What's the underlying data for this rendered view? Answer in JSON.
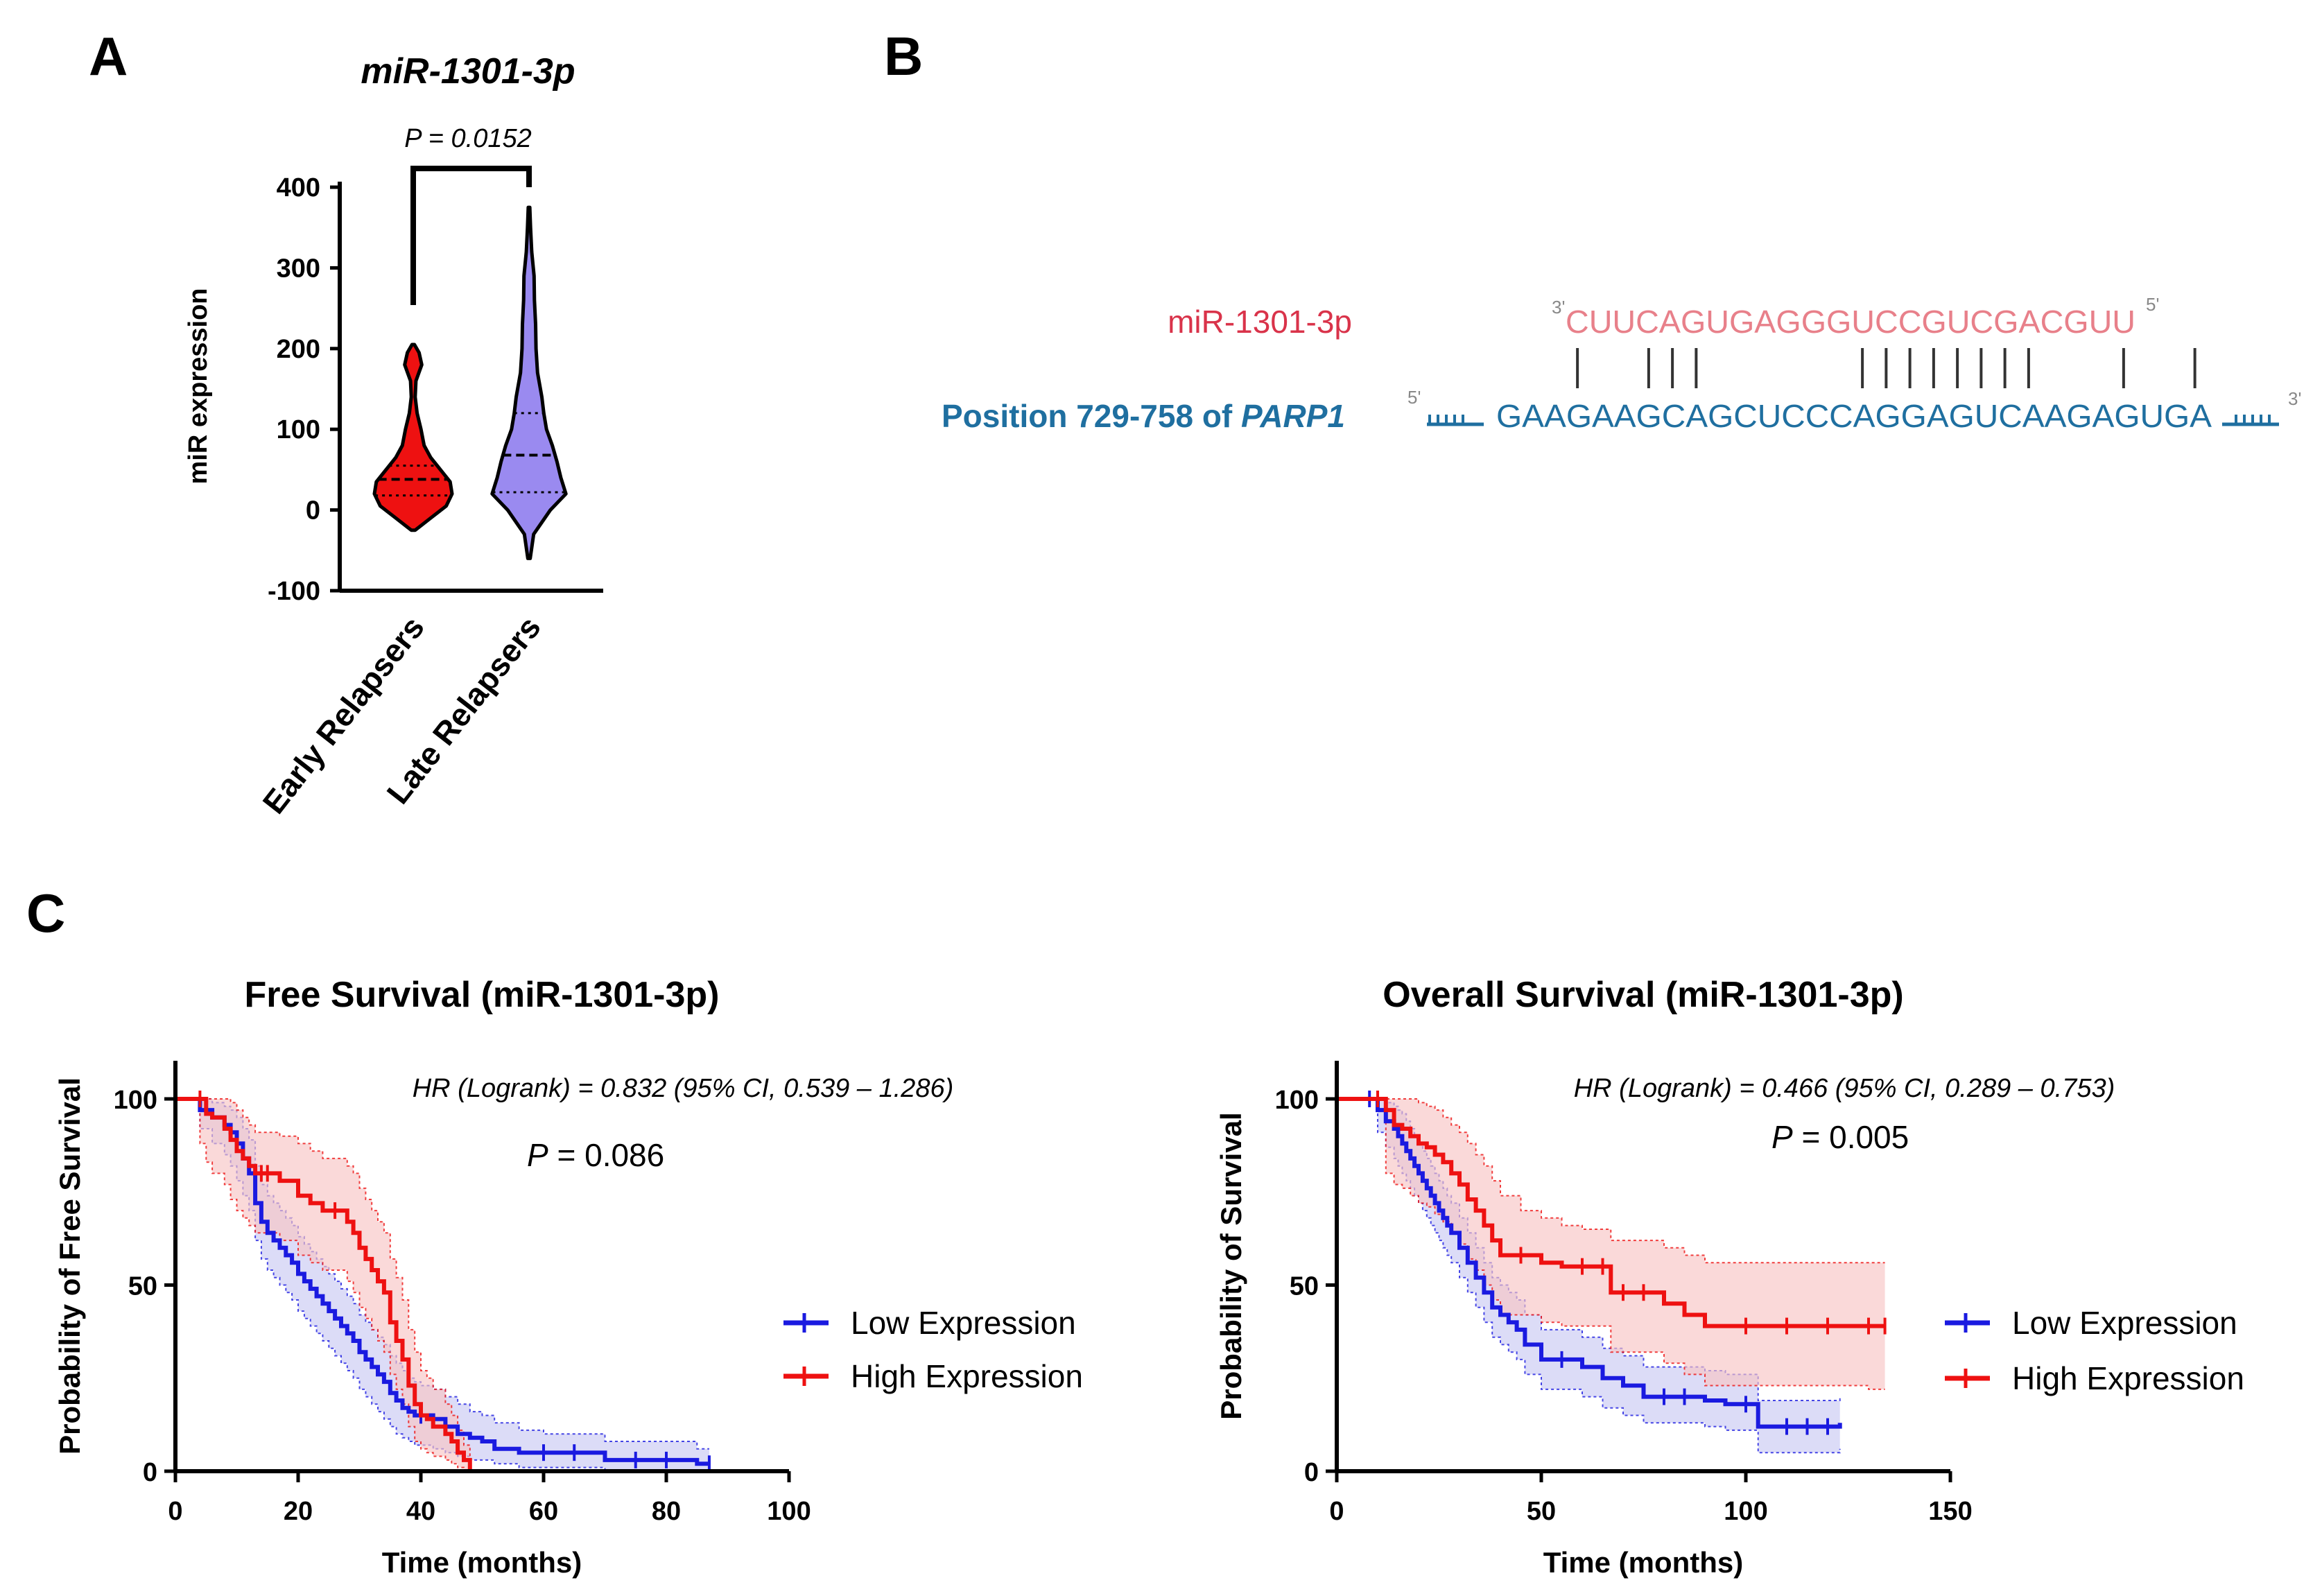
{
  "panels": {
    "a": "A",
    "b": "B",
    "c": "C"
  },
  "colors": {
    "red": "#ee1111",
    "blue": "#1a1ae0",
    "lavender": "#9a8af0",
    "mir_pink": "#e8808a",
    "mir_red": "#d9334a",
    "parp_blue": "#1f6fa0",
    "prime_gray": "#888888",
    "red_band": "#f7c4c4",
    "blue_band": "#c9c9f3"
  },
  "chart_data": [
    {
      "type": "violin",
      "title": "miR-1301-3p",
      "ylabel": "miR expression",
      "ylim": [
        -100,
        400
      ],
      "yticks": [
        "-100",
        "0",
        "100",
        "200",
        "300",
        "400"
      ],
      "categories": [
        "Early Relapsers",
        "Late Relapsers"
      ],
      "annotation": "P = 0.0152",
      "series": [
        {
          "name": "Early Relapsers",
          "median": 38,
          "q1": 18,
          "q3": 55,
          "min": -25,
          "max": 205,
          "color": "#ee1111",
          "profile": [
            [
              -25,
              0.05
            ],
            [
              -10,
              0.45
            ],
            [
              5,
              0.85
            ],
            [
              20,
              1.0
            ],
            [
              35,
              0.95
            ],
            [
              50,
              0.7
            ],
            [
              65,
              0.45
            ],
            [
              80,
              0.28
            ],
            [
              100,
              0.2
            ],
            [
              120,
              0.1
            ],
            [
              140,
              0.05
            ],
            [
              160,
              0.07
            ],
            [
              180,
              0.22
            ],
            [
              195,
              0.15
            ],
            [
              205,
              0.03
            ]
          ]
        },
        {
          "name": "Late Relapsers",
          "median": 68,
          "q1": 22,
          "q3": 120,
          "min": -60,
          "max": 375,
          "color": "#9a8af0",
          "profile": [
            [
              -60,
              0.03
            ],
            [
              -30,
              0.12
            ],
            [
              0,
              0.55
            ],
            [
              20,
              0.95
            ],
            [
              40,
              0.82
            ],
            [
              60,
              0.72
            ],
            [
              80,
              0.6
            ],
            [
              100,
              0.45
            ],
            [
              120,
              0.38
            ],
            [
              140,
              0.33
            ],
            [
              170,
              0.22
            ],
            [
              200,
              0.18
            ],
            [
              230,
              0.17
            ],
            [
              260,
              0.14
            ],
            [
              290,
              0.13
            ],
            [
              320,
              0.07
            ],
            [
              350,
              0.04
            ],
            [
              375,
              0.02
            ]
          ]
        }
      ]
    },
    {
      "type": "line",
      "subtype": "kaplan-meier",
      "title": "Free Survival (miR-1301-3p)",
      "xlabel": "Time (months)",
      "ylabel": "Probability of Free Survival",
      "xlim": [
        0,
        100
      ],
      "ylim": [
        0,
        100
      ],
      "xticks": [
        "0",
        "20",
        "40",
        "60",
        "80",
        "100"
      ],
      "yticks": [
        "0",
        "50",
        "100"
      ],
      "hr_text": "HR (Logrank) = 0.832 (95% CI, 0.539 – 1.286)",
      "p_label": "P",
      "p_text": "= 0.086",
      "series": [
        {
          "name": "Low Expression",
          "color": "#1a1ae0",
          "x": [
            0,
            4,
            6,
            8,
            9,
            10,
            11,
            12,
            13,
            14,
            15,
            16,
            17,
            18,
            19,
            20,
            21,
            22,
            23,
            24,
            25,
            26,
            27,
            28,
            29,
            30,
            31,
            32,
            33,
            34,
            35,
            36,
            37,
            38,
            39,
            40,
            42,
            44,
            46,
            48,
            50,
            52,
            56,
            60,
            65,
            70,
            75,
            80,
            85,
            87
          ],
          "y": [
            100,
            97,
            95,
            93,
            91,
            88,
            84,
            80,
            72,
            67,
            64,
            62,
            60,
            58,
            56,
            53,
            51,
            49,
            47,
            45,
            43,
            41,
            39,
            37,
            35,
            32,
            30,
            28,
            26,
            24,
            21,
            19,
            17,
            16,
            15,
            15,
            14,
            12,
            10,
            9,
            8,
            6,
            5,
            5,
            5,
            3,
            3,
            3,
            2,
            2
          ],
          "lower": [
            100,
            92,
            88,
            85,
            82,
            78,
            74,
            70,
            62,
            57,
            54,
            52,
            50,
            48,
            46,
            43,
            41,
            39,
            37,
            35,
            33,
            31,
            29,
            27,
            25,
            22,
            20,
            18,
            16,
            14,
            12,
            10,
            9,
            8,
            7,
            7,
            6,
            5,
            4,
            3,
            3,
            2,
            1,
            1,
            1,
            0,
            0,
            0,
            0,
            0
          ],
          "upper": [
            100,
            100,
            99,
            98,
            97,
            95,
            92,
            89,
            82,
            77,
            74,
            72,
            70,
            68,
            66,
            63,
            61,
            59,
            57,
            55,
            53,
            51,
            49,
            47,
            45,
            42,
            40,
            38,
            36,
            34,
            31,
            29,
            27,
            25,
            24,
            23,
            22,
            20,
            18,
            16,
            15,
            13,
            11,
            10,
            10,
            8,
            8,
            8,
            6,
            6
          ]
        },
        {
          "name": "High Expression",
          "color": "#ee1111",
          "x": [
            0,
            4,
            5,
            6,
            8,
            9,
            10,
            11,
            12,
            13,
            14,
            15,
            17,
            20,
            22,
            24,
            26,
            28,
            29,
            30,
            31,
            32,
            33,
            34,
            35,
            36,
            37,
            38,
            39,
            40,
            41,
            42,
            44,
            45,
            46,
            47,
            48
          ],
          "y": [
            100,
            100,
            96,
            95,
            92,
            89,
            86,
            84,
            82,
            80,
            80,
            80,
            78,
            74,
            72,
            70,
            70,
            67,
            64,
            60,
            57,
            54,
            51,
            48,
            40,
            35,
            30,
            23,
            18,
            15,
            14,
            12,
            10,
            8,
            5,
            3,
            0
          ],
          "lower": [
            100,
            88,
            83,
            80,
            77,
            73,
            70,
            68,
            66,
            64,
            64,
            64,
            62,
            58,
            56,
            54,
            54,
            51,
            48,
            44,
            41,
            38,
            35,
            32,
            26,
            22,
            18,
            12,
            8,
            6,
            5,
            4,
            3,
            2,
            1,
            0,
            0
          ],
          "upper": [
            100,
            100,
            100,
            100,
            100,
            99,
            97,
            95,
            93,
            91,
            91,
            91,
            90,
            88,
            86,
            84,
            84,
            82,
            80,
            76,
            73,
            70,
            67,
            64,
            57,
            52,
            46,
            38,
            32,
            27,
            25,
            22,
            18,
            15,
            11,
            7,
            3
          ]
        }
      ]
    },
    {
      "type": "line",
      "subtype": "kaplan-meier",
      "title": "Overall Survival (miR-1301-3p)",
      "xlabel": "Time (months)",
      "ylabel": "Probability of Survival",
      "xlim": [
        0,
        150
      ],
      "ylim": [
        0,
        100
      ],
      "xticks": [
        "0",
        "50",
        "100",
        "150"
      ],
      "yticks": [
        "0",
        "50",
        "100"
      ],
      "hr_text": "HR (Logrank) = 0.466 (95% CI, 0.289 – 0.753)",
      "p_label": "P",
      "p_text": "= 0.005",
      "series": [
        {
          "name": "Low Expression",
          "color": "#1a1ae0",
          "x": [
            0,
            8,
            10,
            12,
            14,
            15,
            16,
            17,
            18,
            19,
            20,
            21,
            22,
            23,
            24,
            25,
            26,
            27,
            28,
            30,
            32,
            34,
            36,
            38,
            40,
            42,
            44,
            46,
            50,
            55,
            60,
            65,
            70,
            75,
            80,
            85,
            90,
            95,
            100,
            103,
            110,
            115,
            120,
            123
          ],
          "y": [
            100,
            100,
            97,
            94,
            92,
            90,
            88,
            86,
            84,
            82,
            80,
            78,
            76,
            74,
            72,
            70,
            68,
            66,
            64,
            60,
            56,
            52,
            48,
            44,
            42,
            40,
            38,
            34,
            30,
            30,
            28,
            25,
            23,
            20,
            20,
            20,
            19,
            18,
            18,
            12,
            12,
            12,
            12,
            13
          ],
          "lower": [
            100,
            100,
            91,
            87,
            84,
            82,
            80,
            78,
            76,
            74,
            72,
            70,
            68,
            66,
            64,
            62,
            60,
            58,
            56,
            52,
            48,
            44,
            40,
            36,
            34,
            32,
            30,
            26,
            22,
            22,
            20,
            17,
            15,
            13,
            13,
            13,
            12,
            11,
            11,
            5,
            5,
            5,
            5,
            6
          ],
          "upper": [
            100,
            100,
            100,
            99,
            98,
            97,
            96,
            94,
            92,
            90,
            88,
            86,
            84,
            82,
            80,
            78,
            76,
            74,
            72,
            68,
            64,
            60,
            56,
            52,
            50,
            48,
            46,
            42,
            38,
            38,
            36,
            33,
            31,
            28,
            28,
            28,
            27,
            26,
            26,
            19,
            19,
            19,
            19,
            20
          ]
        },
        {
          "name": "High Expression",
          "color": "#ee1111",
          "x": [
            0,
            10,
            12,
            14,
            16,
            18,
            20,
            22,
            24,
            26,
            28,
            30,
            32,
            34,
            36,
            38,
            40,
            45,
            50,
            55,
            60,
            65,
            67,
            70,
            75,
            80,
            85,
            90,
            100,
            110,
            120,
            130,
            134
          ],
          "y": [
            100,
            100,
            97,
            93,
            92,
            90,
            88,
            87,
            85,
            83,
            80,
            77,
            73,
            70,
            66,
            62,
            58,
            58,
            56,
            55,
            55,
            55,
            48,
            48,
            48,
            45,
            42,
            39,
            39,
            39,
            39,
            39,
            39
          ],
          "lower": [
            100,
            100,
            80,
            77,
            76,
            74,
            72,
            71,
            69,
            67,
            64,
            61,
            57,
            54,
            50,
            46,
            42,
            42,
            40,
            39,
            39,
            39,
            32,
            32,
            32,
            29,
            26,
            23,
            23,
            23,
            23,
            22,
            22
          ],
          "upper": [
            100,
            100,
            100,
            100,
            100,
            100,
            99,
            98,
            97,
            95,
            93,
            91,
            88,
            85,
            82,
            78,
            74,
            70,
            68,
            66,
            65,
            65,
            62,
            62,
            62,
            60,
            58,
            56,
            56,
            56,
            56,
            56,
            56
          ]
        }
      ]
    }
  ],
  "panel_b": {
    "mir_label": "miR-1301-3p",
    "mir_prime_left": "3'",
    "mir_seq": "CUUCAGUGAGGGUCCGUCGACGUU",
    "mir_prime_right": "5'",
    "target_label_prefix": "Position 729-758 of",
    "target_gene": "PARP1",
    "target_prime_left": "5'",
    "target_seq": "GAAGAAGCAGCUCCCAGGAGUCAAGAGUGA",
    "target_prime_right": "3'",
    "pairing_positions": [
      1,
      4,
      5,
      6,
      13,
      14,
      15,
      16,
      17,
      18,
      19,
      20,
      24,
      27
    ]
  }
}
